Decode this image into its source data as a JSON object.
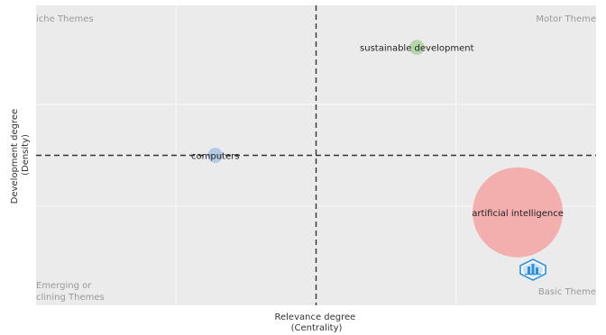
{
  "chart_data": {
    "type": "scatter",
    "title": "",
    "xlabel": [
      "Relevance degree",
      "(Centrality)"
    ],
    "ylabel": [
      "Development degree",
      "(Density)"
    ],
    "xlim": [
      0,
      1
    ],
    "ylim": [
      0,
      1
    ],
    "grid": true,
    "x_divider": 0.5,
    "y_divider": 0.5,
    "quadrants": {
      "top_left": "iche Themes",
      "top_right": "Motor Theme",
      "bottom_left": [
        "Emerging or",
        "clining Themes"
      ],
      "bottom_right": "Basic Theme"
    },
    "points": [
      {
        "label": "sustainable development",
        "x": 0.68,
        "y": 0.86,
        "size": 0.08,
        "color": "#a9d3a0"
      },
      {
        "label": "computers",
        "x": 0.32,
        "y": 0.5,
        "size": 0.08,
        "color": "#a9c4e3"
      },
      {
        "label": "artificial intelligence",
        "x": 0.86,
        "y": 0.31,
        "size": 0.48,
        "color": "#f4a3a3"
      }
    ]
  },
  "watermark_icon": "bibliometrix-logo-icon",
  "colors": {
    "panel": "#ebebeb",
    "grid": "#f7f7f7",
    "divider": "#333333",
    "logo": "#2f8fd8"
  }
}
